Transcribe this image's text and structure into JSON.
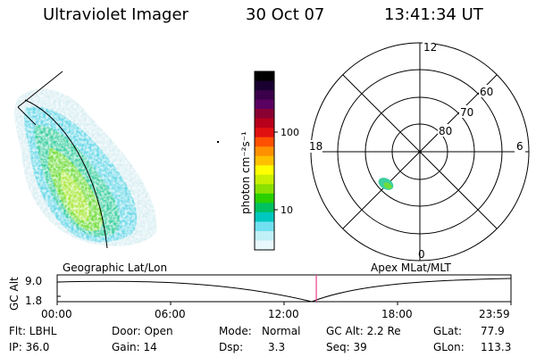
{
  "header": {
    "instrument": "Ultraviolet Imager",
    "date": "30 Oct 07",
    "time": "13:41:34 UT"
  },
  "colorbar": {
    "unit_label": "photon cm⁻²s⁻¹",
    "ticks": [
      "100",
      "10"
    ],
    "colors": [
      "#000000",
      "#1a0030",
      "#3a004a",
      "#5a0060",
      "#8a0030",
      "#b8001a",
      "#e01010",
      "#ff5000",
      "#ff9000",
      "#ffc000",
      "#ffff00",
      "#c8f000",
      "#8ae000",
      "#2ad000",
      "#00c060",
      "#00c8c0",
      "#70e0f0",
      "#c0f0f8",
      "#e8f8fc"
    ]
  },
  "polar": {
    "mlt_labels": {
      "top": "12",
      "left": "18",
      "right": "6",
      "bottom": "0"
    },
    "lat_labels": [
      "60",
      "70",
      "80"
    ]
  },
  "panels": {
    "geo_label": "Geographic Lat/Lon",
    "apex_label": "Apex MLat/MLT"
  },
  "timeline": {
    "ylabel": "GC Alt",
    "y_ticks": [
      "9.0",
      "1.8"
    ],
    "x_ticks": [
      "00:00",
      "06:00",
      "12:00",
      "18:00",
      "23:59"
    ],
    "current_time_fraction": 0.571
  },
  "info": {
    "row1": {
      "flt": "Flt: LBHL",
      "door": "Door: Open",
      "mode_label": "Mode:",
      "mode_value": "Normal",
      "gcalt": "GC Alt: 2.2 Re",
      "glat_label": "GLat:",
      "glat_value": "77.9"
    },
    "row2": {
      "ip": "IP: 36.0",
      "gain": "Gain: 14",
      "dsp_label": "Dsp:",
      "dsp_value": "3.3",
      "seq": "Seq: 39",
      "glon_label": "GLon:",
      "glon_value": "113.3"
    }
  }
}
